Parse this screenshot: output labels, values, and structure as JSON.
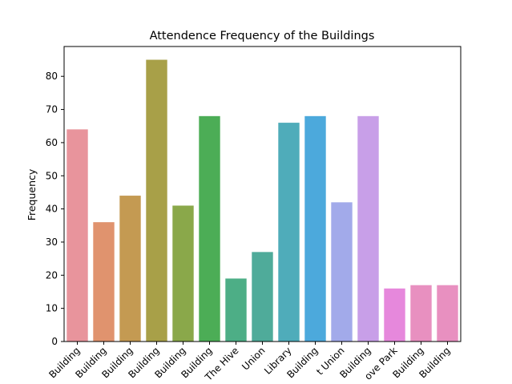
{
  "chart_data": {
    "type": "bar",
    "title": "Attendence Frequency of the Buildings",
    "xlabel": "",
    "ylabel": "Frequency",
    "ylim": [
      0,
      89
    ],
    "yticks": [
      0,
      10,
      20,
      30,
      40,
      50,
      60,
      70,
      80
    ],
    "grid": false,
    "categories": [
      "Building",
      "Building",
      "Building",
      "Building",
      "Building",
      "Building",
      "The Hive",
      "Union",
      "Library",
      "Building",
      "t Union",
      "Building",
      "ove Park",
      "Building",
      "Building"
    ],
    "values": [
      64,
      36,
      44,
      85,
      41,
      68,
      19,
      27,
      66,
      68,
      42,
      68,
      16,
      17,
      17
    ],
    "colors": [
      "#e8949c",
      "#e0936e",
      "#c49a52",
      "#a8a048",
      "#8aa84a",
      "#4cad56",
      "#4dae86",
      "#4fab9a",
      "#4facba",
      "#4ca9dc",
      "#a2aaea",
      "#c89fe8",
      "#e688dc",
      "#e890c0",
      "#e890c0"
    ]
  }
}
